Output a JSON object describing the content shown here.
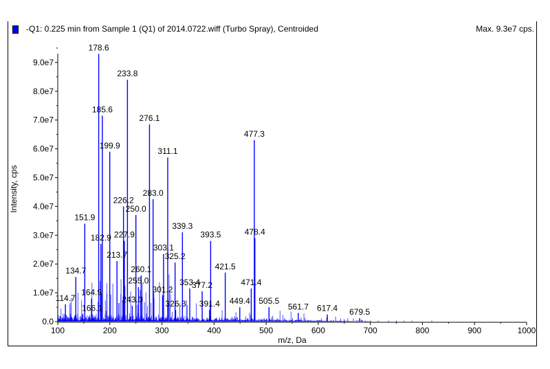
{
  "header": {
    "title": "-Q1: 0.225 min from Sample 1 (Q1) of 2014.0722.wiff (Turbo Spray), Centroided",
    "max_label": "Max. 9.3e7 cps."
  },
  "chart_data": {
    "type": "bar",
    "title": "-Q1: 0.225 min from Sample 1 (Q1) of 2014.0722.wiff (Turbo Spray), Centroided",
    "xlabel": "m/z, Da",
    "ylabel": "Intensity, cps",
    "xlim": [
      100,
      1000
    ],
    "ylim": [
      0,
      93000000.0
    ],
    "xticks": [
      "100",
      "200",
      "300",
      "400",
      "500",
      "600",
      "700",
      "800",
      "900",
      "1000"
    ],
    "yticks": [
      "0.0",
      "1.0e7",
      "2.0e7",
      "3.0e7",
      "4.0e7",
      "5.0e7",
      "6.0e7",
      "7.0e7",
      "8.0e7",
      "9.0e7"
    ],
    "series_color": "#0000ff",
    "labeled_peaks": [
      {
        "mz": 178.6,
        "intensity": 93000000.0,
        "label": "178.6"
      },
      {
        "mz": 233.8,
        "intensity": 84000000.0,
        "label": "233.8"
      },
      {
        "mz": 185.6,
        "intensity": 71500000.0,
        "label": "185.6"
      },
      {
        "mz": 276.1,
        "intensity": 68500000.0,
        "label": "276.1"
      },
      {
        "mz": 477.3,
        "intensity": 63000000.0,
        "label": "477.3"
      },
      {
        "mz": 199.9,
        "intensity": 59000000.0,
        "label": "199.9"
      },
      {
        "mz": 311.1,
        "intensity": 57000000.0,
        "label": "311.1"
      },
      {
        "mz": 283.0,
        "intensity": 42500000.0,
        "label": "283.0"
      },
      {
        "mz": 226.2,
        "intensity": 40000000.0,
        "label": "226.2"
      },
      {
        "mz": 250.0,
        "intensity": 37000000.0,
        "label": "250.0"
      },
      {
        "mz": 151.9,
        "intensity": 34000000.0,
        "label": "151.9"
      },
      {
        "mz": 339.3,
        "intensity": 31000000.0,
        "label": "339.3"
      },
      {
        "mz": 478.4,
        "intensity": 29000000.0,
        "label": "478.4"
      },
      {
        "mz": 393.5,
        "intensity": 28000000.0,
        "label": "393.5"
      },
      {
        "mz": 227.9,
        "intensity": 28000000.0,
        "label": "227.9"
      },
      {
        "mz": 182.9,
        "intensity": 27000000.0,
        "label": "182.9"
      },
      {
        "mz": 303.1,
        "intensity": 23500000.0,
        "label": "303.1"
      },
      {
        "mz": 213.7,
        "intensity": 21000000.0,
        "label": "213.7"
      },
      {
        "mz": 325.2,
        "intensity": 20500000.0,
        "label": "325.2"
      },
      {
        "mz": 421.5,
        "intensity": 17000000.0,
        "label": "421.5"
      },
      {
        "mz": 260.1,
        "intensity": 16000000.0,
        "label": "260.1"
      },
      {
        "mz": 134.7,
        "intensity": 15500000.0,
        "label": "134.7"
      },
      {
        "mz": 255.0,
        "intensity": 12000000.0,
        "label": "255.0"
      },
      {
        "mz": 353.4,
        "intensity": 11500000.0,
        "label": "353.4"
      },
      {
        "mz": 471.4,
        "intensity": 11500000.0,
        "label": "471.4"
      },
      {
        "mz": 377.2,
        "intensity": 10500000.0,
        "label": "377.2"
      },
      {
        "mz": 301.2,
        "intensity": 9000000.0,
        "label": "301.2"
      },
      {
        "mz": 164.9,
        "intensity": 8000000.0,
        "label": "164.9"
      },
      {
        "mz": 114.7,
        "intensity": 6000000.0,
        "label": "114.7"
      },
      {
        "mz": 243.0,
        "intensity": 5500000.0,
        "label": "243.0"
      },
      {
        "mz": 449.4,
        "intensity": 5000000.0,
        "label": "449.4"
      },
      {
        "mz": 505.5,
        "intensity": 5000000.0,
        "label": "505.5"
      },
      {
        "mz": 326.3,
        "intensity": 4000000.0,
        "label": "326.3"
      },
      {
        "mz": 391.4,
        "intensity": 4000000.0,
        "label": "391.4"
      },
      {
        "mz": 561.7,
        "intensity": 3000000.0,
        "label": "561.7"
      },
      {
        "mz": 166.1,
        "intensity": 2500000.0,
        "label": "166.1"
      },
      {
        "mz": 617.4,
        "intensity": 2500000.0,
        "label": "617.4"
      },
      {
        "mz": 679.5,
        "intensity": 1200000.0,
        "label": "679.5"
      }
    ]
  }
}
